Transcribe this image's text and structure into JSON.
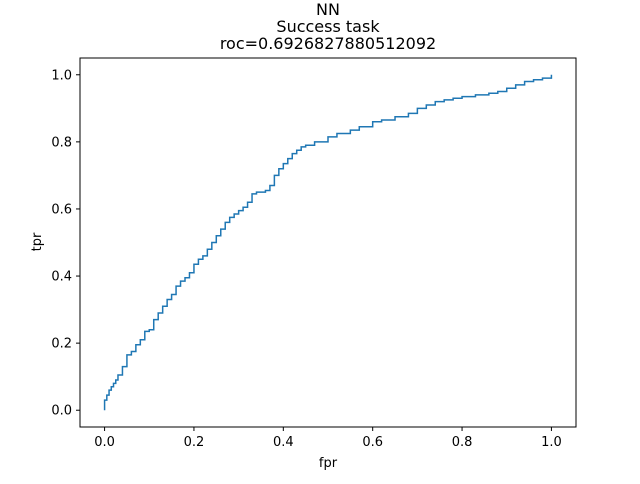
{
  "chart_data": {
    "type": "line",
    "title_lines": [
      "NN",
      "Success task",
      "roc=0.6926827880512092"
    ],
    "xlabel": "fpr",
    "ylabel": "tpr",
    "xlim": [
      -0.055,
      1.055
    ],
    "ylim": [
      -0.05,
      1.05
    ],
    "x_ticks": [
      0.0,
      0.2,
      0.4,
      0.6,
      0.8,
      1.0
    ],
    "x_tick_labels": [
      "0.0",
      "0.2",
      "0.4",
      "0.6",
      "0.8",
      "1.0"
    ],
    "y_ticks": [
      0.0,
      0.2,
      0.4,
      0.6,
      0.8,
      1.0
    ],
    "y_tick_labels": [
      "0.0",
      "0.2",
      "0.4",
      "0.6",
      "0.8",
      "1.0"
    ],
    "grid": false,
    "series": [
      {
        "color": "#1f77b4",
        "x": [
          0.0,
          0.0,
          0.005,
          0.01,
          0.015,
          0.02,
          0.025,
          0.03,
          0.04,
          0.05,
          0.06,
          0.07,
          0.08,
          0.09,
          0.1,
          0.11,
          0.12,
          0.13,
          0.14,
          0.15,
          0.16,
          0.17,
          0.18,
          0.19,
          0.2,
          0.21,
          0.22,
          0.23,
          0.24,
          0.25,
          0.26,
          0.27,
          0.28,
          0.29,
          0.3,
          0.31,
          0.32,
          0.33,
          0.34,
          0.35,
          0.36,
          0.37,
          0.38,
          0.39,
          0.4,
          0.41,
          0.42,
          0.43,
          0.44,
          0.45,
          0.47,
          0.5,
          0.52,
          0.55,
          0.57,
          0.6,
          0.62,
          0.65,
          0.68,
          0.7,
          0.72,
          0.74,
          0.76,
          0.78,
          0.8,
          0.83,
          0.86,
          0.88,
          0.9,
          0.92,
          0.94,
          0.96,
          0.98,
          1.0
        ],
        "y": [
          0.0,
          0.03,
          0.045,
          0.06,
          0.07,
          0.08,
          0.09,
          0.105,
          0.13,
          0.165,
          0.175,
          0.195,
          0.21,
          0.235,
          0.24,
          0.27,
          0.29,
          0.31,
          0.33,
          0.345,
          0.37,
          0.385,
          0.395,
          0.41,
          0.435,
          0.45,
          0.46,
          0.48,
          0.5,
          0.52,
          0.54,
          0.56,
          0.575,
          0.585,
          0.595,
          0.605,
          0.62,
          0.645,
          0.65,
          0.65,
          0.655,
          0.67,
          0.7,
          0.72,
          0.735,
          0.75,
          0.765,
          0.775,
          0.785,
          0.79,
          0.8,
          0.815,
          0.825,
          0.835,
          0.845,
          0.86,
          0.865,
          0.875,
          0.885,
          0.9,
          0.91,
          0.92,
          0.925,
          0.93,
          0.935,
          0.94,
          0.945,
          0.95,
          0.96,
          0.97,
          0.98,
          0.985,
          0.99,
          1.0
        ]
      }
    ]
  }
}
